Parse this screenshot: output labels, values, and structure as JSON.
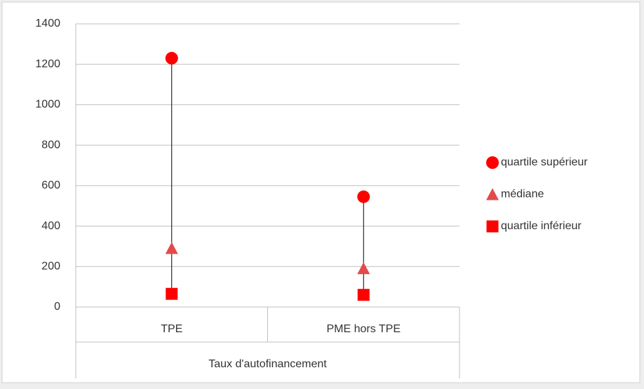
{
  "chart_data": {
    "type": "dot",
    "categories": [
      "TPE",
      "PME hors TPE"
    ],
    "group_label": "Taux d'autofinancement",
    "series": [
      {
        "name": "quartile supérieur",
        "color": "#ff0000",
        "marker": "circle",
        "values": [
          1230,
          545
        ]
      },
      {
        "name": "médiane",
        "color": "#e34a4a",
        "marker": "triangle",
        "values": [
          290,
          190
        ]
      },
      {
        "name": "quartile inférieur",
        "color": "#ff0000",
        "marker": "square",
        "values": [
          65,
          60
        ]
      }
    ],
    "ylim": [
      0,
      1400
    ],
    "yticks": [
      0,
      200,
      400,
      600,
      800,
      1000,
      1200,
      1400
    ],
    "grid": true,
    "high_low_lines": true,
    "legend": "right"
  }
}
